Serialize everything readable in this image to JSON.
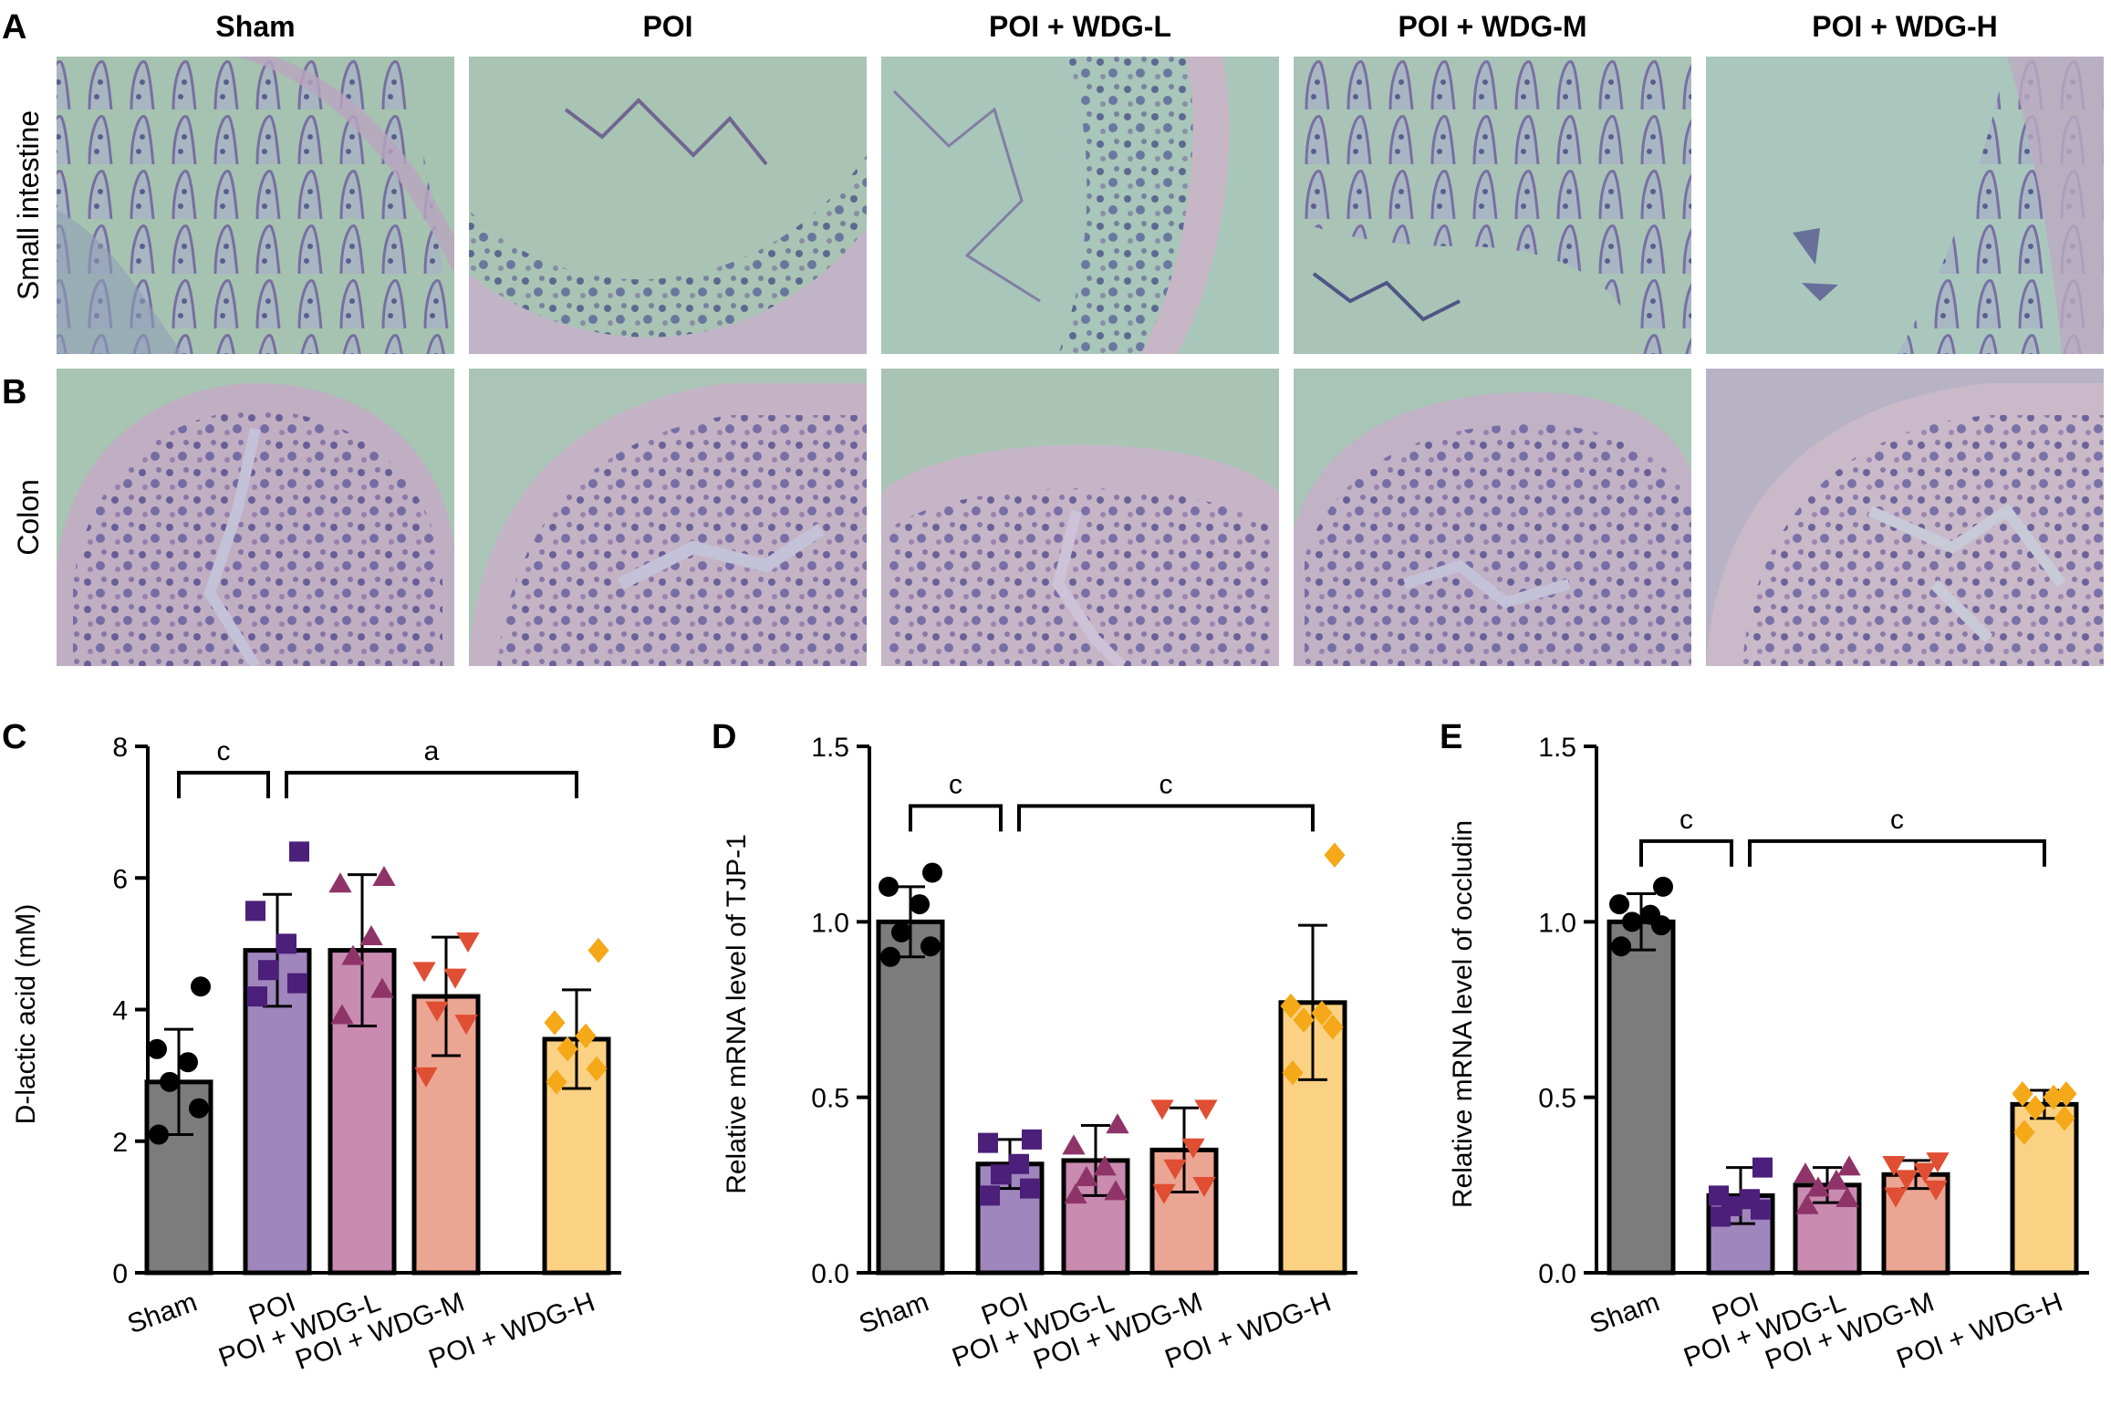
{
  "panel_labels": {
    "a": "A",
    "b": "B",
    "c": "C",
    "d": "D",
    "e": "E"
  },
  "histology": {
    "columns": [
      "Sham",
      "POI",
      "POI + WDG-L",
      "POI + WDG-M",
      "POI + WDG-H"
    ],
    "rows": [
      "Small intestine",
      "Colon"
    ]
  },
  "colors": {
    "Sham": "#7c7c7c",
    "POI": "#9f86bd",
    "POI + WDG-L": "#c98bb0",
    "POI + WDG-M": "#eba593",
    "POI + WDG-H": "#fbd283",
    "Sham_dot": "#000000",
    "POI_dot": "#4b1f7a",
    "POI + WDG-L_dot": "#8e3468",
    "POI + WDG-M_dot": "#e04e33",
    "POI + WDG-H_dot": "#f5a818"
  },
  "chart_data": [
    {
      "panel": "C",
      "type": "bar",
      "ylabel": "D-lactic acid (mM)",
      "ylim": [
        0,
        8
      ],
      "yticks": [
        "0",
        "2",
        "4",
        "6",
        "8"
      ],
      "categories": [
        "Sham",
        "POI",
        "POI + WDG-L",
        "POI + WDG-M",
        "POI + WDG-H"
      ],
      "values": [
        2.9,
        4.9,
        4.9,
        4.2,
        3.55
      ],
      "sd": [
        0.8,
        0.85,
        1.15,
        0.9,
        0.75
      ],
      "points": [
        [
          2.1,
          2.5,
          2.9,
          3.2,
          3.4,
          4.35
        ],
        [
          4.2,
          4.4,
          4.6,
          5.0,
          5.5,
          6.4
        ],
        [
          3.9,
          4.3,
          4.8,
          5.1,
          5.9,
          6.0
        ],
        [
          3.0,
          3.8,
          4.0,
          4.5,
          4.6,
          5.05
        ],
        [
          2.9,
          3.1,
          3.4,
          3.6,
          3.8,
          4.9
        ]
      ],
      "markers": [
        "circle",
        "square",
        "triangle-up",
        "triangle-down",
        "diamond"
      ],
      "brackets": [
        {
          "from": 0,
          "to": 1,
          "label": "c",
          "y": 7.6
        },
        {
          "from": 1,
          "to": 4,
          "label": "a",
          "y": 7.6
        }
      ]
    },
    {
      "panel": "D",
      "type": "bar",
      "ylabel": "Relative mRNA level of TJP-1",
      "ylim": [
        0,
        1.5
      ],
      "yticks": [
        "0.0",
        "0.5",
        "1.0",
        "1.5"
      ],
      "categories": [
        "Sham",
        "POI",
        "POI + WDG-L",
        "POI + WDG-M",
        "POI + WDG-H"
      ],
      "values": [
        1.0,
        0.31,
        0.32,
        0.35,
        0.77
      ],
      "sd": [
        0.1,
        0.07,
        0.1,
        0.12,
        0.22
      ],
      "points": [
        [
          0.9,
          0.93,
          0.97,
          1.05,
          1.1,
          1.14
        ],
        [
          0.22,
          0.24,
          0.28,
          0.31,
          0.37,
          0.38
        ],
        [
          0.22,
          0.23,
          0.27,
          0.3,
          0.36,
          0.42
        ],
        [
          0.23,
          0.25,
          0.3,
          0.36,
          0.47,
          0.47
        ],
        [
          0.57,
          0.7,
          0.72,
          0.74,
          0.76,
          1.19
        ]
      ],
      "markers": [
        "circle",
        "square",
        "triangle-up",
        "triangle-down",
        "diamond"
      ],
      "brackets": [
        {
          "from": 0,
          "to": 1,
          "label": "c",
          "y": 1.33
        },
        {
          "from": 1,
          "to": 4,
          "label": "c",
          "y": 1.33
        }
      ]
    },
    {
      "panel": "E",
      "type": "bar",
      "ylabel": "Relative mRNA level of occludin",
      "ylim": [
        0,
        1.5
      ],
      "yticks": [
        "0.0",
        "0.5",
        "1.0",
        "1.5"
      ],
      "categories": [
        "Sham",
        "POI",
        "POI + WDG-L",
        "POI + WDG-M",
        "POI + WDG-H"
      ],
      "values": [
        1.0,
        0.22,
        0.25,
        0.28,
        0.48
      ],
      "sd": [
        0.08,
        0.08,
        0.05,
        0.04,
        0.04
      ],
      "points": [
        [
          0.93,
          0.99,
          1.0,
          1.02,
          1.05,
          1.1
        ],
        [
          0.16,
          0.18,
          0.19,
          0.21,
          0.22,
          0.3
        ],
        [
          0.19,
          0.21,
          0.24,
          0.26,
          0.28,
          0.3
        ],
        [
          0.22,
          0.24,
          0.27,
          0.29,
          0.31,
          0.32
        ],
        [
          0.4,
          0.44,
          0.47,
          0.5,
          0.51,
          0.51
        ]
      ],
      "markers": [
        "circle",
        "square",
        "triangle-up",
        "triangle-down",
        "diamond"
      ],
      "brackets": [
        {
          "from": 0,
          "to": 1,
          "label": "c",
          "y": 1.23
        },
        {
          "from": 1,
          "to": 4,
          "label": "c",
          "y": 1.23
        }
      ]
    }
  ]
}
